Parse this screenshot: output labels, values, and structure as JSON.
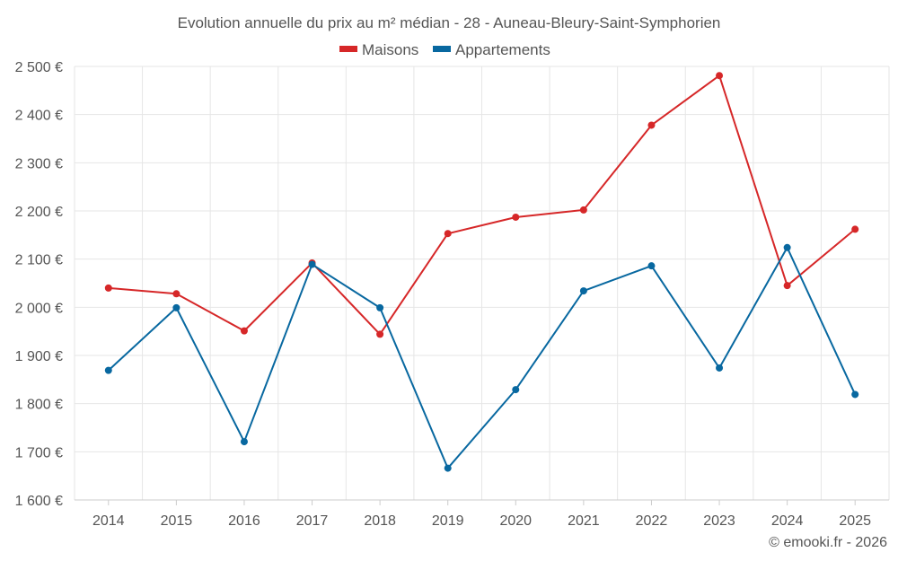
{
  "chart_data": {
    "type": "line",
    "title": "Evolution annuelle du prix au m² médian - 28 - Auneau-Bleury-Saint-Symphorien",
    "categories": [
      "2014",
      "2015",
      "2016",
      "2017",
      "2018",
      "2019",
      "2020",
      "2021",
      "2022",
      "2023",
      "2024",
      "2025"
    ],
    "ylim": [
      1600,
      2500
    ],
    "yticks": [
      1600,
      1700,
      1800,
      1900,
      2000,
      2100,
      2200,
      2300,
      2400,
      2500
    ],
    "ytick_labels": [
      "1 600 €",
      "1 700 €",
      "1 800 €",
      "1 900 €",
      "2 000 €",
      "2 100 €",
      "2 200 €",
      "2 300 €",
      "2 400 €",
      "2 500 €"
    ],
    "grid": true,
    "legend_position": "top-center",
    "series": [
      {
        "name": "Maisons",
        "color": "#d62728",
        "values": [
          2040,
          2028,
          1951,
          2092,
          1944,
          2153,
          2187,
          2202,
          2378,
          2481,
          2045,
          2162
        ]
      },
      {
        "name": "Appartements",
        "color": "#0868a0",
        "values": [
          1869,
          1999,
          1721,
          2089,
          1999,
          1666,
          1829,
          2034,
          2086,
          1874,
          2124,
          1819
        ]
      }
    ],
    "credit": "© emooki.fr - 2026"
  }
}
